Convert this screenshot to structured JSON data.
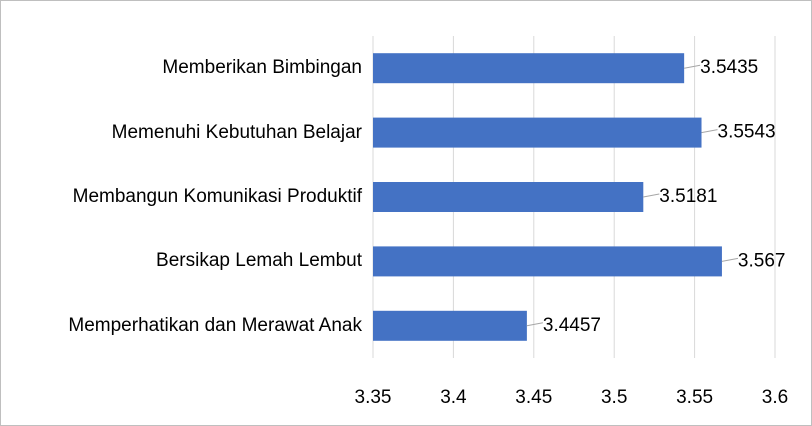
{
  "chart_data": {
    "type": "barh",
    "categories": [
      "Memberikan Bimbingan",
      "Memenuhi Kebutuhan Belajar",
      "Membangun Komunikasi Produktif",
      "Bersikap Lemah Lembut",
      "Memperhatikan dan Merawat Anak"
    ],
    "values": [
      3.5435,
      3.5543,
      3.5181,
      3.567,
      3.4457
    ],
    "color": "#4472c4",
    "xlim": [
      3.35,
      3.6
    ],
    "xticks": [
      3.35,
      3.4,
      3.45,
      3.5,
      3.55,
      3.6
    ],
    "grid": true
  }
}
